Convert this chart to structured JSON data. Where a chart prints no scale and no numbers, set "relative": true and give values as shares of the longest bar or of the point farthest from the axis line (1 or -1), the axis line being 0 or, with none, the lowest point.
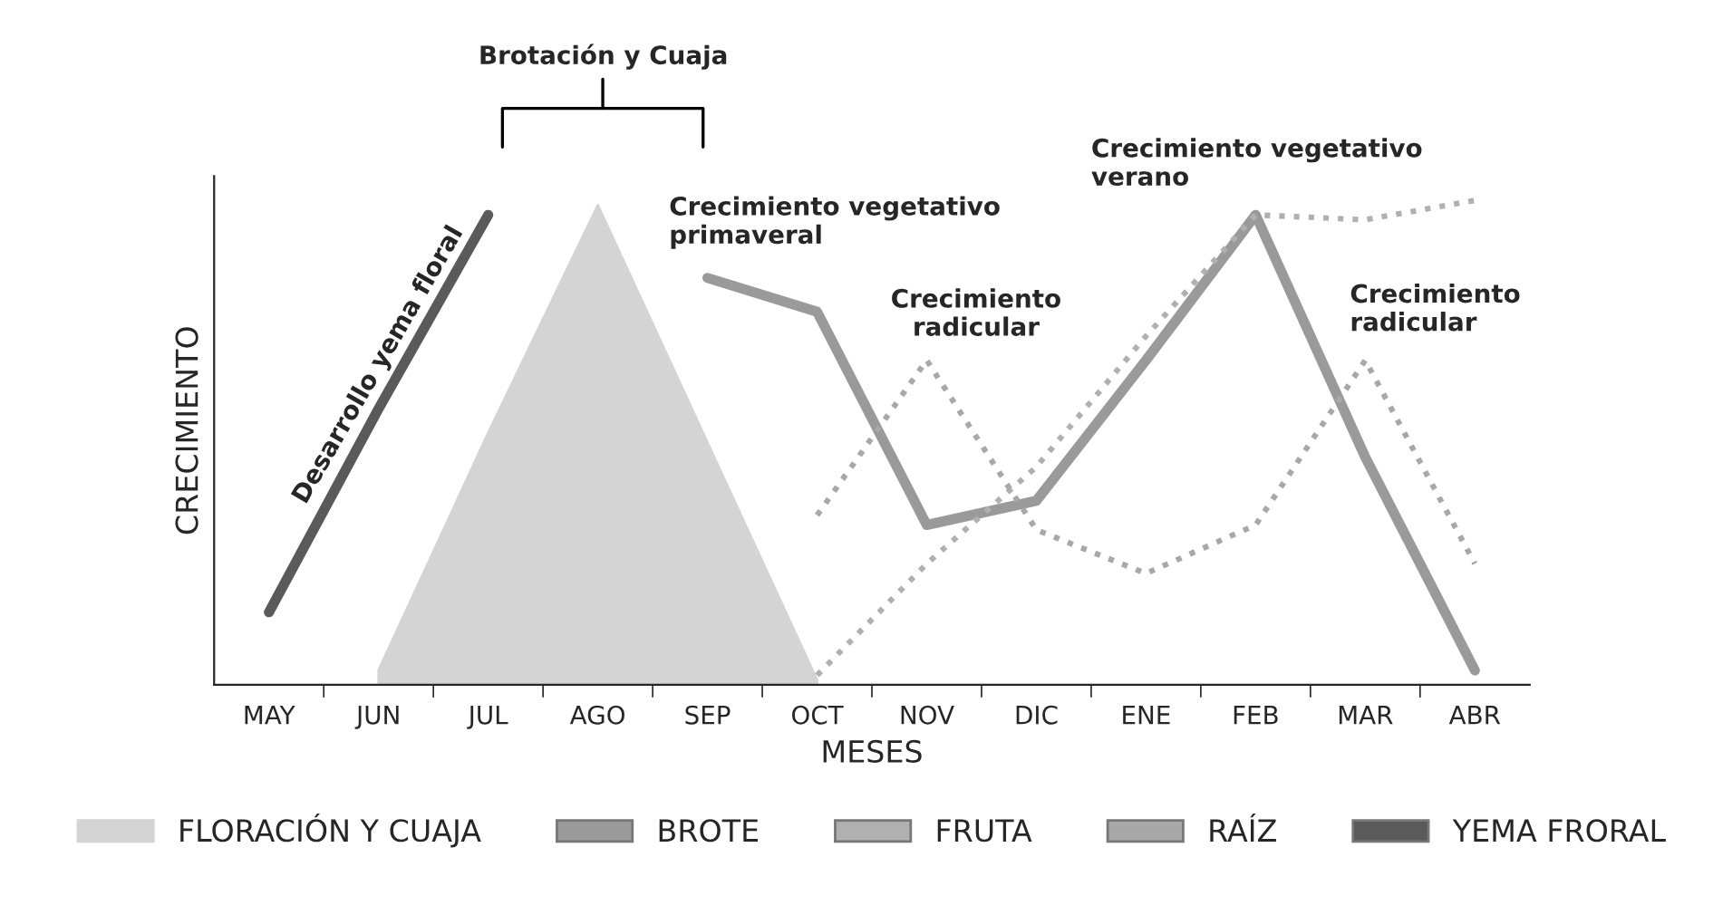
{
  "chart_data": {
    "type": "line",
    "relative": true,
    "xlabel": "MESES",
    "ylabel": "CRECIMIENTO",
    "categories": [
      "MAY",
      "JUN",
      "JUL",
      "AGO",
      "SEP",
      "OCT",
      "NOV",
      "DIC",
      "ENE",
      "FEB",
      "MAR",
      "ABR"
    ],
    "series": [
      {
        "name": "FLORACIÓN Y CUAJA",
        "type": "area",
        "color": "#d4d4d4",
        "values": [
          null,
          0.03,
          0.52,
          0.99,
          0.5,
          0.01,
          null,
          null,
          null,
          null,
          null,
          null
        ]
      },
      {
        "name": "BROTE",
        "color": "#9a9a9a",
        "line_style": "solid",
        "values": [
          null,
          null,
          null,
          null,
          0.84,
          0.77,
          0.33,
          0.38,
          0.67,
          0.97,
          0.47,
          0.03
        ]
      },
      {
        "name": "FRUTA",
        "color": "#b0b0b0",
        "line_style": "dotted",
        "values": [
          null,
          null,
          null,
          null,
          null,
          0.02,
          0.25,
          0.45,
          0.72,
          0.97,
          0.96,
          1.0
        ]
      },
      {
        "name": "RAÍZ",
        "color": "#a8a8a8",
        "line_style": "dotted",
        "values": [
          null,
          null,
          null,
          null,
          null,
          0.35,
          0.67,
          0.32,
          0.23,
          0.33,
          0.67,
          0.25
        ]
      },
      {
        "name": "YEMA FRORAL",
        "color": "#5a5a5a",
        "line_style": "solid",
        "values": [
          0.15,
          0.57,
          0.97,
          null,
          null,
          null,
          null,
          null,
          null,
          null,
          null,
          null
        ]
      }
    ],
    "annotations": [
      "Brotación y Cuaja",
      "Desarrollo yema floral",
      "Crecimiento vegetativo\nprimaveral",
      "Crecimiento\nradicular",
      "Crecimiento vegetativo\nverano",
      "Crecimiento\nradicular"
    ],
    "legend": "bottom"
  }
}
